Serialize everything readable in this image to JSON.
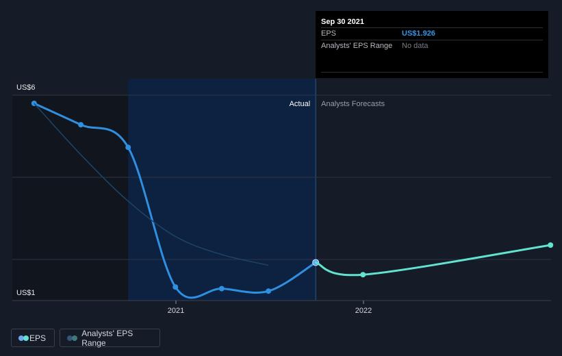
{
  "chart_data": {
    "type": "line",
    "y_axis": {
      "labels": [
        "US$6",
        "US$1"
      ],
      "ylim": [
        1,
        6
      ]
    },
    "x_axis": {
      "ticks": [
        "2021",
        "2022"
      ]
    },
    "regions": {
      "actual_label": "Actual",
      "forecast_label": "Analysts Forecasts"
    },
    "series": [
      {
        "name": "EPS",
        "kind": "actual",
        "points": [
          {
            "x": "2020-03-31",
            "y": 5.8
          },
          {
            "x": "2020-06-30",
            "y": 5.28
          },
          {
            "x": "2020-09-30",
            "y": 4.73
          },
          {
            "x": "2020-12-31",
            "y": 1.33
          },
          {
            "x": "2021-03-31",
            "y": 1.29
          },
          {
            "x": "2021-06-30",
            "y": 1.23
          },
          {
            "x": "2021-09-30",
            "y": 1.926
          }
        ]
      },
      {
        "name": "Analysts' EPS Range",
        "kind": "forecast",
        "points": [
          {
            "x": "2021-09-30",
            "y": 1.926
          },
          {
            "x": "2021-12-31",
            "y": 1.63
          },
          {
            "x": "2022-12-31",
            "y": 2.35
          }
        ]
      },
      {
        "name": "EPS trend",
        "kind": "faint",
        "points": [
          {
            "x": "2020-03-31",
            "y": 5.8
          },
          {
            "x": "2020-06-30",
            "y": 4.55
          },
          {
            "x": "2020-09-30",
            "y": 3.42
          },
          {
            "x": "2020-12-31",
            "y": 2.56
          },
          {
            "x": "2021-03-31",
            "y": 2.12
          },
          {
            "x": "2021-06-30",
            "y": 1.86
          }
        ]
      }
    ],
    "grid": true
  },
  "tooltip": {
    "date": "Sep 30 2021",
    "rows": [
      {
        "key": "EPS",
        "value": "US$1.926"
      },
      {
        "key": "Analysts' EPS Range",
        "value": "No data"
      }
    ]
  },
  "legend": {
    "eps_label": "EPS",
    "range_label": "Analysts' EPS Range"
  },
  "colors": {
    "background": "#151b27",
    "eps_line": "#2f8fe0",
    "forecast_line": "#63e2d0",
    "actual_band": "#0c2240",
    "past_band": "#11161e",
    "faint_line": "#1f4466"
  }
}
